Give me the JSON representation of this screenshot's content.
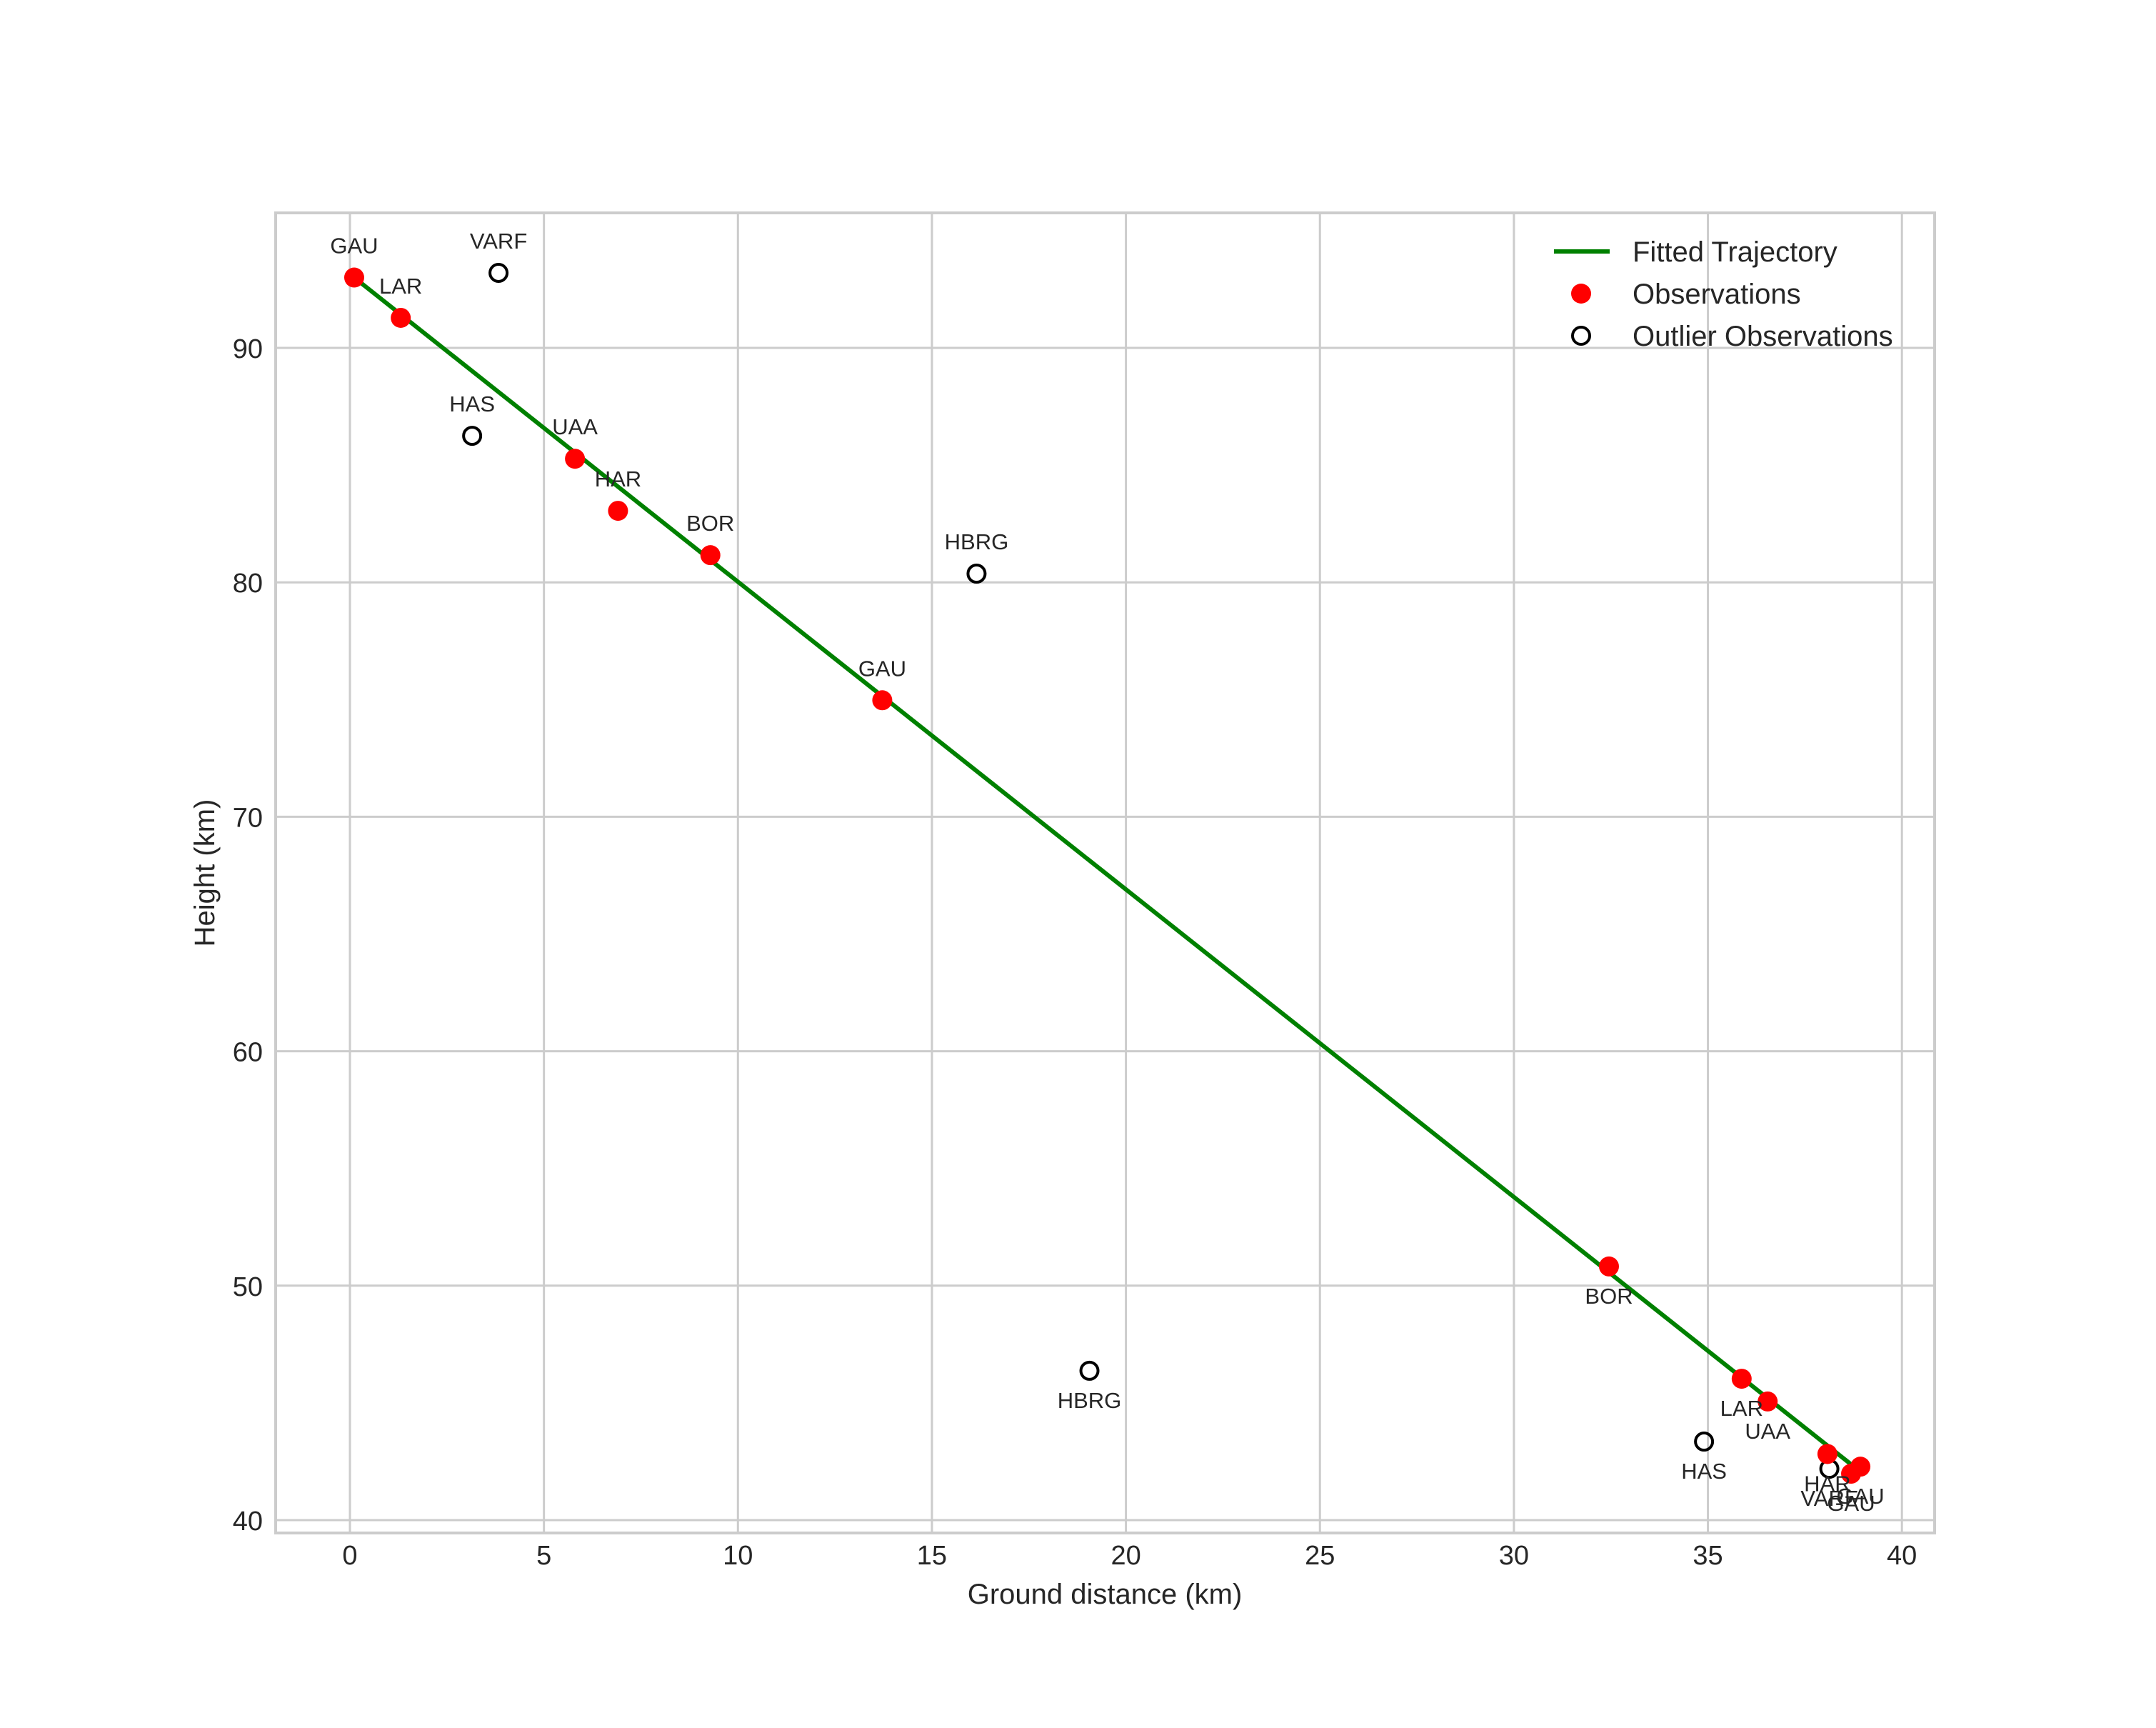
{
  "chart_data": {
    "type": "scatter",
    "title": "",
    "xlabel": "Ground distance (km)",
    "ylabel": "Height (km)",
    "xlim": [
      -1.93,
      40.85
    ],
    "ylim": [
      39.45,
      95.76
    ],
    "xticks": [
      0,
      5,
      10,
      15,
      20,
      25,
      30,
      35,
      40
    ],
    "yticks": [
      40,
      50,
      60,
      70,
      80,
      90
    ],
    "grid": true,
    "legend_position": "upper right",
    "legend": [
      "Fitted Trajectory",
      "Observations",
      "Outlier Observations"
    ],
    "colors": {
      "trajectory": "#008000",
      "observations": "#ff0000",
      "outliers_edge": "#000000",
      "grid": "#cccccc",
      "text": "#262626"
    },
    "series": [
      {
        "name": "Fitted Trajectory",
        "kind": "line",
        "x": [
          0.11,
          38.75
        ],
        "y": [
          93.0,
          42.3
        ]
      },
      {
        "name": "Observations",
        "kind": "scatter",
        "points": [
          {
            "x": 0.11,
            "y": 93.0,
            "label": "GAU",
            "label_pos": "above"
          },
          {
            "x": 1.31,
            "y": 91.28,
            "label": "LAR",
            "label_pos": "above"
          },
          {
            "x": 5.8,
            "y": 85.27,
            "label": "UAA",
            "label_pos": "above"
          },
          {
            "x": 6.91,
            "y": 83.05,
            "label": "HAR",
            "label_pos": "above"
          },
          {
            "x": 9.29,
            "y": 81.16,
            "label": "BOR",
            "label_pos": "above"
          },
          {
            "x": 13.72,
            "y": 74.97,
            "label": "GAU",
            "label_pos": "above"
          },
          {
            "x": 32.45,
            "y": 50.82,
            "label": "BOR",
            "label_pos": "below"
          },
          {
            "x": 35.87,
            "y": 46.03,
            "label": "LAR",
            "label_pos": "below"
          },
          {
            "x": 36.54,
            "y": 45.06,
            "label": "UAA",
            "label_pos": "below"
          },
          {
            "x": 38.08,
            "y": 42.82,
            "label": "HAR",
            "label_pos": "below"
          },
          {
            "x": 38.69,
            "y": 41.98,
            "label": "GAU",
            "label_pos": "below"
          },
          {
            "x": 38.93,
            "y": 42.28,
            "label": "GAU",
            "label_pos": "below"
          }
        ]
      },
      {
        "name": "Outlier Observations",
        "kind": "scatter",
        "points": [
          {
            "x": 3.83,
            "y": 93.2,
            "label": "VARF",
            "label_pos": "above"
          },
          {
            "x": 3.15,
            "y": 86.25,
            "label": "HAS",
            "label_pos": "above"
          },
          {
            "x": 16.15,
            "y": 80.37,
            "label": "HBRG",
            "label_pos": "above"
          },
          {
            "x": 19.06,
            "y": 46.37,
            "label": "HBRG",
            "label_pos": "below"
          },
          {
            "x": 34.9,
            "y": 43.35,
            "label": "HAS",
            "label_pos": "below"
          },
          {
            "x": 38.13,
            "y": 42.19,
            "label": "VARF",
            "label_pos": "below"
          }
        ]
      }
    ]
  }
}
